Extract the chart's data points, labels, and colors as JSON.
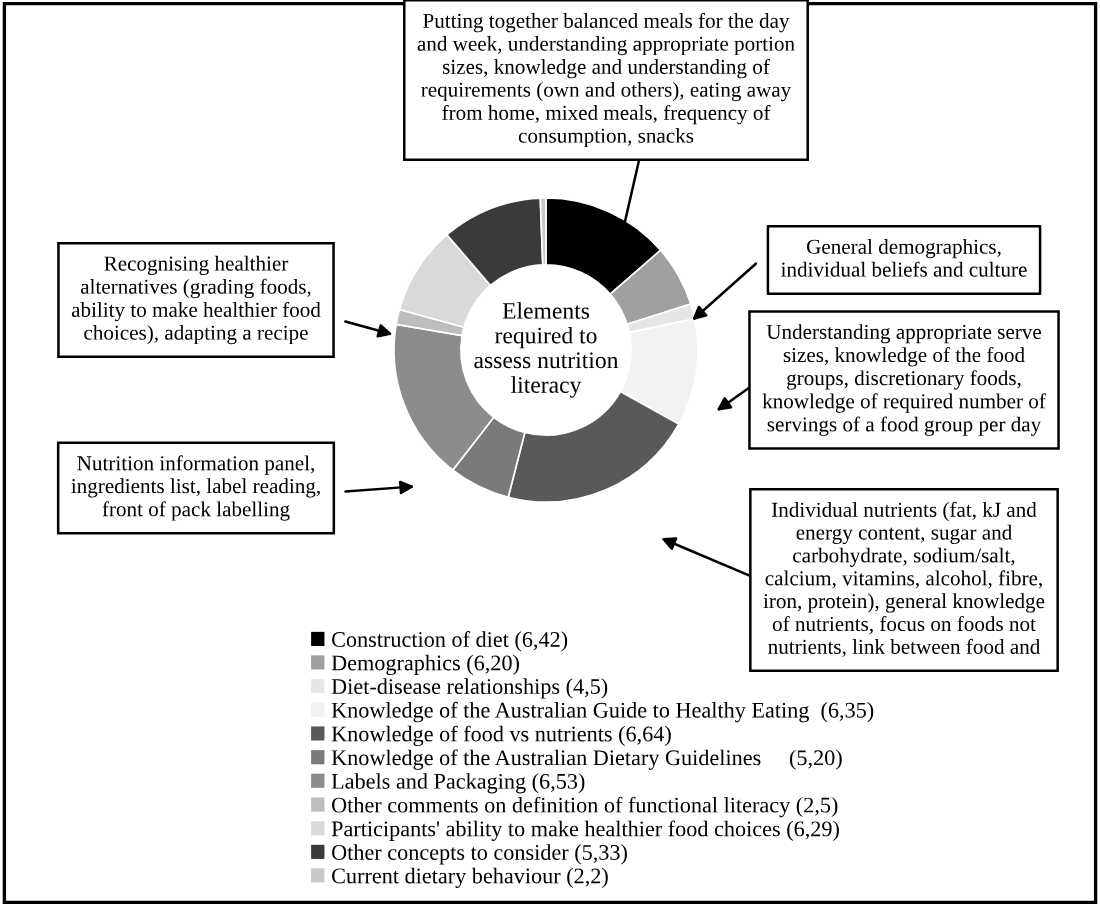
{
  "chart_data": {
    "type": "donut",
    "title": "Elements\nrequired to\nassess nutrition\nliteracy",
    "categories": [
      "Construction of diet (6,42)",
      "Demographics (6,20)",
      "Diet-disease relationships (4,5)",
      "Knowledge of the Australian Guide to Healthy Eating  (6,35)",
      "Knowledge of food vs nutrients (6,64)",
      "Knowledge of the Australian Dietary Guidelines     (5,20)",
      "Labels and Packaging (6,53)",
      "Other comments on definition of functional literacy (2,5)",
      "Participants' ability to make healthier food choices (6,29)",
      "Other concepts to consider (5,33)",
      "Current dietary behaviour (2,2)"
    ],
    "values": [
      13.6,
      6.5,
      1.6,
      11.4,
      20.9,
      6.5,
      17.2,
      1.6,
      9.4,
      10.7,
      0.6
    ],
    "colors": [
      "#000000",
      "#a0a0a0",
      "#e6e6e6",
      "#f2f2f2",
      "#595959",
      "#7a7a7a",
      "#8c8c8c",
      "#bdbdbd",
      "#d9d9d9",
      "#3a3a3a",
      "#c8c8c8"
    ],
    "annotations": [
      "Putting together balanced meals for the day\nand week, understanding appropriate portion\nsizes, knowledge and understanding of\nrequirements (own and others), eating away\nfrom home, mixed meals, frequency of\nconsumption, snacks",
      "General demographics,\nindividual beliefs and culture",
      "Understanding appropriate serve\nsizes, knowledge of the food\ngroups, discretionary foods,\nknowledge of required number of\nservings of a food group per day",
      "Individual nutrients (fat, kJ and\nenergy content, sugar and\ncarbohydrate, sodium/salt,\ncalcium, vitamins, alcohol, fibre,\niron, protein), general knowledge\nof nutrients, focus on foods not\nnutrients, link between food and",
      "Nutrition information panel,\ningredients list, label reading,\nfront of pack labelling",
      "Recognising healthier\nalternatives (grading foods,\nability to make healthier food\nchoices), adapting a recipe"
    ],
    "legend": "bottom"
  }
}
